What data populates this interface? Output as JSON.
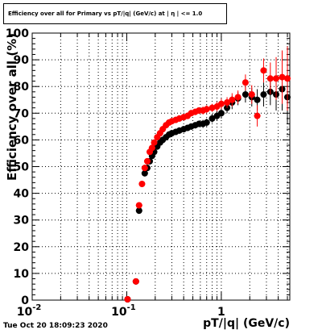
{
  "chart_data": {
    "type": "scatter",
    "title": "Efficiency over all for Primary vs pT/|q| (GeV/c) at | η | <= 1.0",
    "xlabel": "pT/|q| (GeV/c)",
    "ylabel": "Efficiency over all (%)",
    "xscale": "log",
    "xlim": [
      0.01,
      5.3
    ],
    "ylim": [
      0,
      100
    ],
    "xticks": [
      {
        "value": 0.01,
        "label_base": "10",
        "label_exp": "-2"
      },
      {
        "value": 0.1,
        "label_base": "10",
        "label_exp": "-1"
      },
      {
        "value": 1,
        "label_base": "1",
        "label_exp": ""
      }
    ],
    "yticks": [
      0,
      10,
      20,
      30,
      40,
      50,
      60,
      70,
      80,
      90,
      100
    ],
    "grid": true,
    "series": [
      {
        "color": "#000000",
        "points": [
          {
            "x": 0.102,
            "y": 0.3,
            "e": 0.5
          },
          {
            "x": 0.125,
            "y": 7.0,
            "e": 0.8
          },
          {
            "x": 0.135,
            "y": 33.5,
            "e": 1.2
          },
          {
            "x": 0.155,
            "y": 47.5,
            "e": 1.2
          },
          {
            "x": 0.165,
            "y": 49.5,
            "e": 1.2
          },
          {
            "x": 0.175,
            "y": 52.0,
            "e": 1.2
          },
          {
            "x": 0.185,
            "y": 54.0,
            "e": 1.2
          },
          {
            "x": 0.195,
            "y": 55.5,
            "e": 1.2
          },
          {
            "x": 0.21,
            "y": 57.5,
            "e": 1.2
          },
          {
            "x": 0.225,
            "y": 59.0,
            "e": 1.2
          },
          {
            "x": 0.24,
            "y": 60.0,
            "e": 1.2
          },
          {
            "x": 0.26,
            "y": 61.0,
            "e": 1.2
          },
          {
            "x": 0.28,
            "y": 62.0,
            "e": 1.2
          },
          {
            "x": 0.3,
            "y": 62.5,
            "e": 1.2
          },
          {
            "x": 0.33,
            "y": 63.0,
            "e": 1.2
          },
          {
            "x": 0.36,
            "y": 63.5,
            "e": 1.2
          },
          {
            "x": 0.4,
            "y": 64.0,
            "e": 1.2
          },
          {
            "x": 0.44,
            "y": 64.5,
            "e": 1.2
          },
          {
            "x": 0.48,
            "y": 65.0,
            "e": 1.2
          },
          {
            "x": 0.53,
            "y": 65.5,
            "e": 1.2
          },
          {
            "x": 0.58,
            "y": 66.0,
            "e": 1.2
          },
          {
            "x": 0.64,
            "y": 66.0,
            "e": 1.5
          },
          {
            "x": 0.7,
            "y": 66.5,
            "e": 1.5
          },
          {
            "x": 0.8,
            "y": 68.0,
            "e": 1.5
          },
          {
            "x": 0.9,
            "y": 69.0,
            "e": 1.8
          },
          {
            "x": 1.0,
            "y": 70.0,
            "e": 2.0
          },
          {
            "x": 1.15,
            "y": 72.0,
            "e": 2.0
          },
          {
            "x": 1.3,
            "y": 74.0,
            "e": 2.5
          },
          {
            "x": 1.5,
            "y": 75.5,
            "e": 2.5
          },
          {
            "x": 1.8,
            "y": 77.0,
            "e": 3.0
          },
          {
            "x": 2.1,
            "y": 76.0,
            "e": 3.5
          },
          {
            "x": 2.4,
            "y": 75.0,
            "e": 4.0
          },
          {
            "x": 2.8,
            "y": 77.0,
            "e": 4.5
          },
          {
            "x": 3.3,
            "y": 78.0,
            "e": 5.0
          },
          {
            "x": 3.8,
            "y": 77.0,
            "e": 6.0
          },
          {
            "x": 4.4,
            "y": 79.0,
            "e": 8.0
          },
          {
            "x": 5.0,
            "y": 76.0,
            "e": 10.0
          }
        ]
      },
      {
        "color": "#ff0000",
        "points": [
          {
            "x": 0.102,
            "y": 0.3,
            "e": 0.5
          },
          {
            "x": 0.125,
            "y": 7.0,
            "e": 0.8
          },
          {
            "x": 0.135,
            "y": 35.5,
            "e": 1.2
          },
          {
            "x": 0.145,
            "y": 43.5,
            "e": 1.2
          },
          {
            "x": 0.155,
            "y": 49.5,
            "e": 1.2
          },
          {
            "x": 0.165,
            "y": 52.0,
            "e": 1.2
          },
          {
            "x": 0.175,
            "y": 55.5,
            "e": 1.2
          },
          {
            "x": 0.185,
            "y": 57.0,
            "e": 1.2
          },
          {
            "x": 0.195,
            "y": 59.0,
            "e": 1.2
          },
          {
            "x": 0.21,
            "y": 61.0,
            "e": 1.2
          },
          {
            "x": 0.225,
            "y": 62.5,
            "e": 1.2
          },
          {
            "x": 0.24,
            "y": 64.0,
            "e": 1.2
          },
          {
            "x": 0.26,
            "y": 65.5,
            "e": 1.2
          },
          {
            "x": 0.28,
            "y": 66.5,
            "e": 1.2
          },
          {
            "x": 0.3,
            "y": 67.0,
            "e": 1.2
          },
          {
            "x": 0.33,
            "y": 67.5,
            "e": 1.2
          },
          {
            "x": 0.36,
            "y": 68.0,
            "e": 1.2
          },
          {
            "x": 0.4,
            "y": 68.5,
            "e": 1.2
          },
          {
            "x": 0.44,
            "y": 69.0,
            "e": 1.2
          },
          {
            "x": 0.48,
            "y": 70.0,
            "e": 1.2
          },
          {
            "x": 0.53,
            "y": 70.5,
            "e": 1.2
          },
          {
            "x": 0.58,
            "y": 71.0,
            "e": 1.2
          },
          {
            "x": 0.64,
            "y": 71.0,
            "e": 1.5
          },
          {
            "x": 0.7,
            "y": 71.5,
            "e": 1.5
          },
          {
            "x": 0.8,
            "y": 72.0,
            "e": 1.5
          },
          {
            "x": 0.9,
            "y": 72.5,
            "e": 1.8
          },
          {
            "x": 1.0,
            "y": 73.5,
            "e": 2.0
          },
          {
            "x": 1.15,
            "y": 74.0,
            "e": 2.0
          },
          {
            "x": 1.3,
            "y": 75.0,
            "e": 2.5
          },
          {
            "x": 1.5,
            "y": 76.0,
            "e": 2.5
          },
          {
            "x": 1.8,
            "y": 81.5,
            "e": 3.0
          },
          {
            "x": 2.1,
            "y": 77.0,
            "e": 3.5
          },
          {
            "x": 2.4,
            "y": 69.0,
            "e": 4.0
          },
          {
            "x": 2.8,
            "y": 86.0,
            "e": 4.5
          },
          {
            "x": 3.3,
            "y": 83.0,
            "e": 6.0
          },
          {
            "x": 3.8,
            "y": 83.0,
            "e": 8.0
          },
          {
            "x": 4.4,
            "y": 83.5,
            "e": 10.0
          },
          {
            "x": 5.0,
            "y": 83.0,
            "e": 12.0
          }
        ]
      }
    ]
  },
  "footer": {
    "timestamp": "Tue Oct 20 18:09:23 2020"
  }
}
